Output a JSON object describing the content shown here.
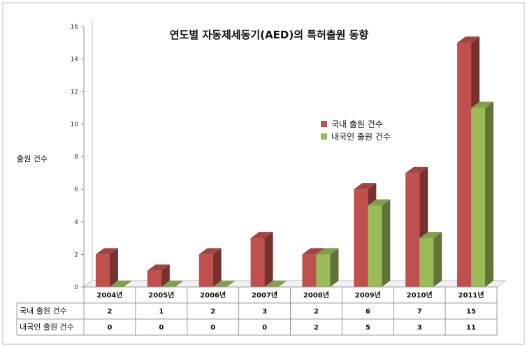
{
  "chart_data": {
    "type": "bar",
    "title": "연도별 자동제세동기(AED)의 특허출원 동향",
    "ylabel": "출원 건수",
    "xlabel": "",
    "categories": [
      "2004년",
      "2005년",
      "2006년",
      "2007년",
      "2008년",
      "2009년",
      "2010년",
      "2011년"
    ],
    "ylim": [
      0,
      16
    ],
    "yticks": [
      0,
      2,
      4,
      6,
      8,
      10,
      12,
      14,
      16
    ],
    "grid": false,
    "legend": "center-right",
    "data_table": true,
    "series": [
      {
        "name": "국내 출원 건수",
        "color": "#c0504d",
        "values": [
          2,
          1,
          2,
          3,
          2,
          6,
          7,
          15
        ]
      },
      {
        "name": "내국인 출원 건수",
        "color": "#9bbb59",
        "values": [
          0,
          0,
          0,
          0,
          2,
          5,
          3,
          11
        ]
      }
    ]
  }
}
